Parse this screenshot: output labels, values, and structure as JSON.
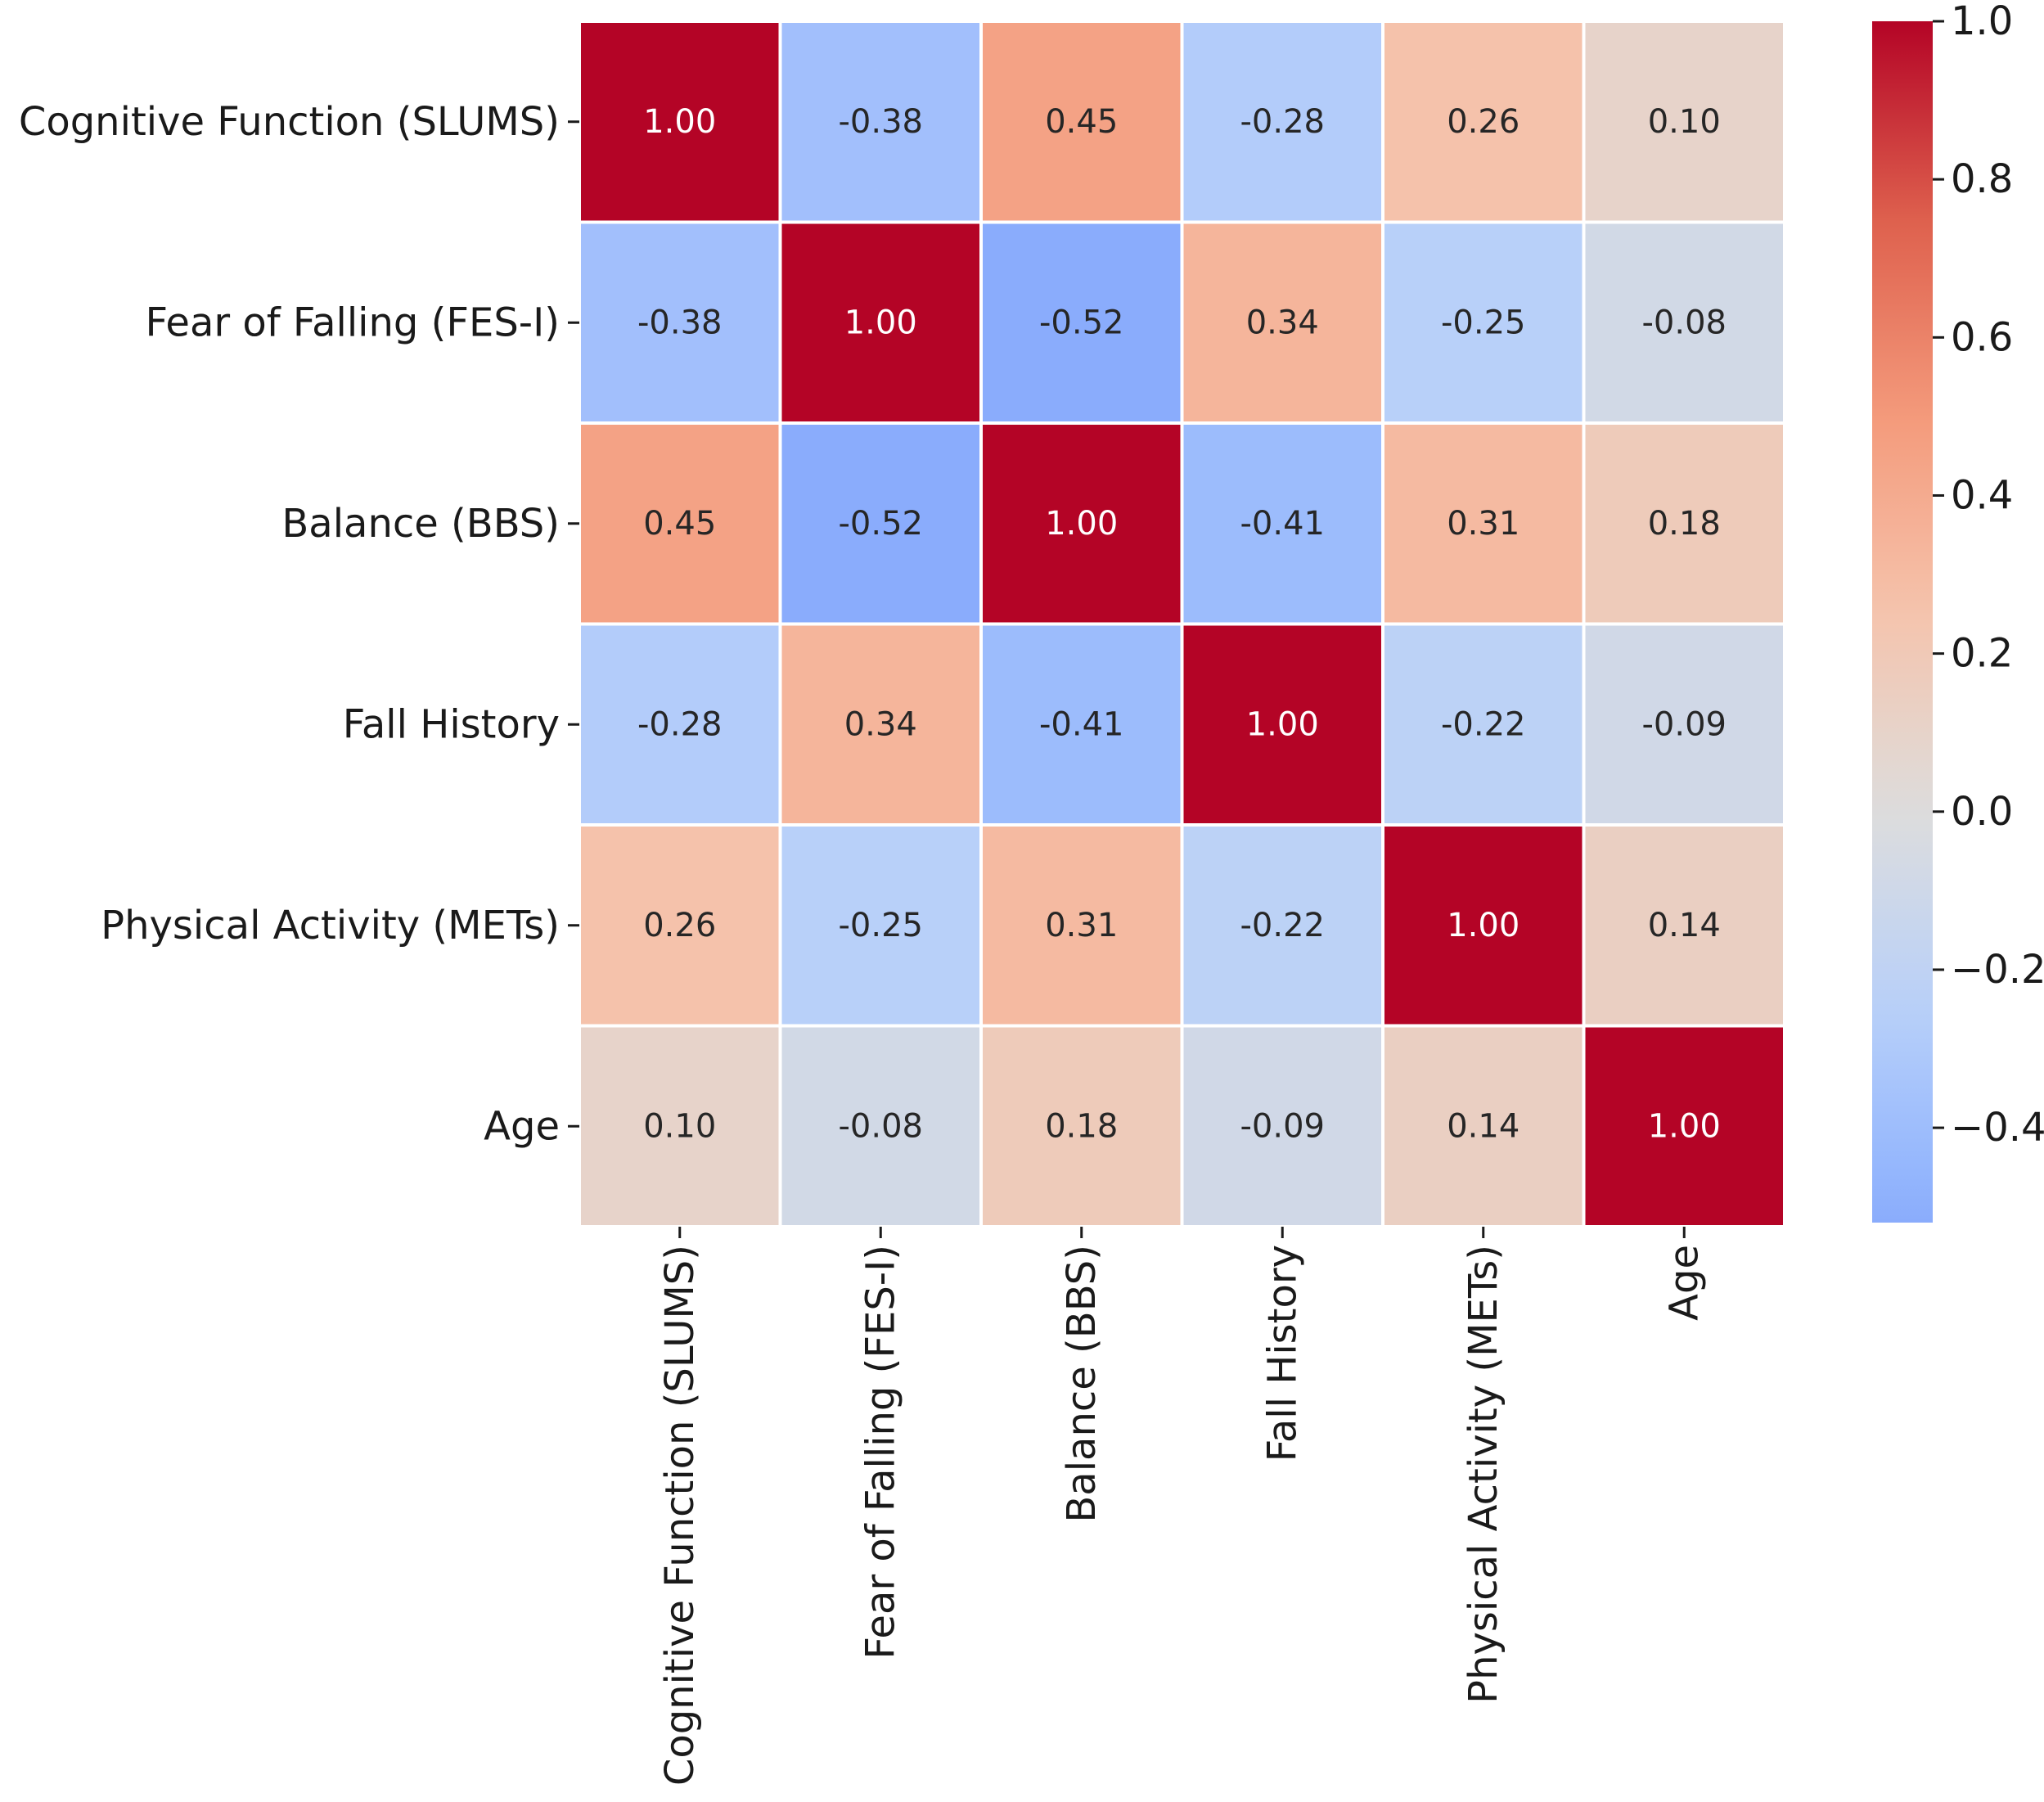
{
  "chart_data": {
    "type": "heatmap",
    "title": "",
    "xlabel": "",
    "ylabel": "",
    "rows": [
      "Cognitive Function (SLUMS)",
      "Fear of Falling (FES-I)",
      "Balance (BBS)",
      "Fall History",
      "Physical Activity (METs)",
      "Age"
    ],
    "columns": [
      "Cognitive Function (SLUMS)",
      "Fear of Falling (FES-I)",
      "Balance (BBS)",
      "Fall History",
      "Physical Activity (METs)",
      "Age"
    ],
    "values": [
      [
        1.0,
        -0.38,
        0.45,
        -0.28,
        0.26,
        0.1
      ],
      [
        -0.38,
        1.0,
        -0.52,
        0.34,
        -0.25,
        -0.08
      ],
      [
        0.45,
        -0.52,
        1.0,
        -0.41,
        0.31,
        0.18
      ],
      [
        -0.28,
        0.34,
        -0.41,
        1.0,
        -0.22,
        -0.09
      ],
      [
        0.26,
        -0.25,
        0.31,
        -0.22,
        1.0,
        0.14
      ],
      [
        0.1,
        -0.08,
        0.18,
        -0.09,
        0.14,
        1.0
      ]
    ],
    "annotation_format": "2 decimals",
    "colormap": "coolwarm",
    "center": 0,
    "colorbar": {
      "range": [
        -0.52,
        1.0
      ],
      "ticks": [
        1.0,
        0.8,
        0.6,
        0.4,
        0.2,
        0.0,
        -0.2,
        -0.4
      ],
      "tick_labels": [
        "1.0",
        "0.8",
        "0.6",
        "0.4",
        "0.2",
        "0.0",
        "−0.2",
        "−0.4"
      ]
    },
    "grid": true,
    "cell_border_color": "#ffffff"
  }
}
